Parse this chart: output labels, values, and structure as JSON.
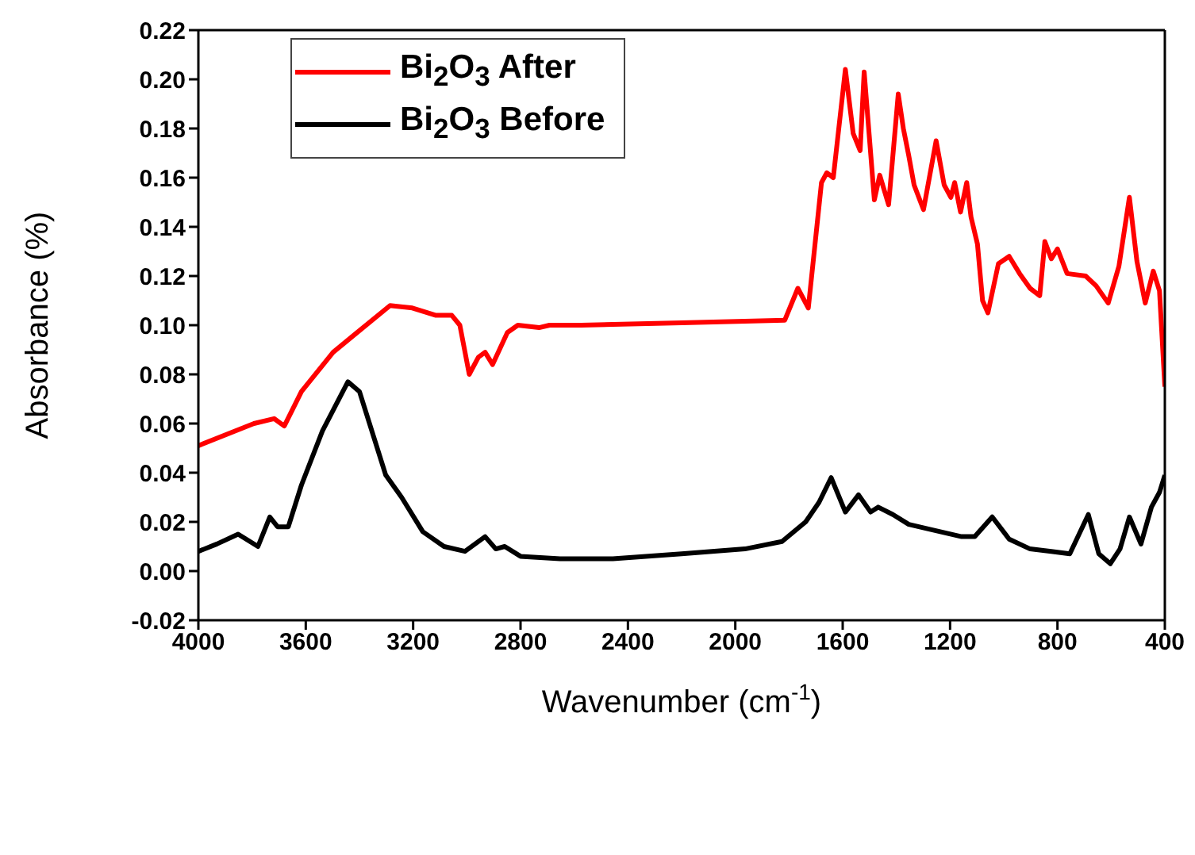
{
  "chart_data": {
    "type": "line",
    "xlabel": "Wavenumber (cm$^{-1}$)",
    "ylabel": "Absorbance (%)",
    "xlim": [
      4000,
      400
    ],
    "xticks": [
      4000,
      3600,
      3200,
      2800,
      2400,
      2000,
      1600,
      1200,
      800,
      400
    ],
    "ylim": [
      -0.02,
      0.22
    ],
    "yticks": [
      {
        "value": -0.02,
        "label": "-0.02"
      },
      {
        "value": 0,
        "label": "0.00"
      },
      {
        "value": 0.02,
        "label": "0.02"
      },
      {
        "value": 0.04,
        "label": "0.04"
      },
      {
        "value": 0.06,
        "label": "0.06"
      },
      {
        "value": 0.08,
        "label": "0.08"
      },
      {
        "value": 0.1,
        "label": "0.10"
      },
      {
        "value": 0.12,
        "label": "0.12"
      },
      {
        "value": 0.14,
        "label": "0.14"
      },
      {
        "value": 0.16,
        "label": "0.16"
      },
      {
        "value": 0.18,
        "label": "0.18"
      },
      {
        "value": 0.2,
        "label": "0.20"
      },
      {
        "value": 0.22,
        "label": "0.22"
      }
    ],
    "legend": "top left",
    "marker": "none",
    "line_style": "solid",
    "series": [
      {
        "name": "Bi$_{2}$O$_{3}$ After",
        "color": "#ff0000",
        "x": [
          4000,
          3793,
          3718,
          3680,
          3616,
          3498,
          3420,
          3286,
          3203,
          3115,
          3056,
          3026,
          2991,
          2957,
          2932,
          2904,
          2849,
          2810,
          2731,
          2692,
          2574,
          2200,
          1816,
          1767,
          1728,
          1679,
          1659,
          1635,
          1590,
          1561,
          1535,
          1520,
          1482,
          1462,
          1429,
          1393,
          1374,
          1354,
          1334,
          1299,
          1252,
          1222,
          1197,
          1183,
          1161,
          1138,
          1122,
          1098,
          1079,
          1059,
          1020,
          980,
          941,
          902,
          866,
          847,
          823,
          800,
          764,
          695,
          656,
          611,
          571,
          532,
          504,
          473,
          443,
          420,
          400
        ],
        "values": [
          0.051,
          0.06,
          0.062,
          0.059,
          0.073,
          0.089,
          0.096,
          0.108,
          0.107,
          0.104,
          0.104,
          0.1,
          0.08,
          0.087,
          0.089,
          0.084,
          0.097,
          0.1,
          0.099,
          0.1,
          0.1,
          0.101,
          0.102,
          0.115,
          0.107,
          0.158,
          0.162,
          0.16,
          0.204,
          0.178,
          0.171,
          0.203,
          0.151,
          0.161,
          0.149,
          0.194,
          0.18,
          0.169,
          0.157,
          0.147,
          0.175,
          0.157,
          0.152,
          0.158,
          0.146,
          0.158,
          0.144,
          0.133,
          0.11,
          0.105,
          0.125,
          0.128,
          0.121,
          0.115,
          0.112,
          0.134,
          0.127,
          0.131,
          0.121,
          0.12,
          0.116,
          0.109,
          0.124,
          0.152,
          0.126,
          0.109,
          0.122,
          0.114,
          0.075
        ]
      },
      {
        "name": "Bi$_{2}$O$_{3}$ Before",
        "color": "#000000",
        "x": [
          4000,
          3931,
          3852,
          3778,
          3734,
          3705,
          3665,
          3616,
          3538,
          3443,
          3400,
          3302,
          3243,
          3164,
          3085,
          3007,
          2932,
          2892,
          2859,
          2800,
          2653,
          2456,
          2200,
          1964,
          1826,
          1738,
          1688,
          1643,
          1590,
          1541,
          1496,
          1468,
          1413,
          1354,
          1275,
          1157,
          1108,
          1043,
          980,
          902,
          823,
          754,
          685,
          646,
          603,
          567,
          532,
          489,
          450,
          420,
          400
        ],
        "values": [
          0.008,
          0.011,
          0.015,
          0.01,
          0.022,
          0.018,
          0.018,
          0.035,
          0.057,
          0.077,
          0.073,
          0.039,
          0.03,
          0.016,
          0.01,
          0.008,
          0.014,
          0.009,
          0.01,
          0.006,
          0.005,
          0.005,
          0.007,
          0.009,
          0.012,
          0.02,
          0.028,
          0.038,
          0.024,
          0.031,
          0.024,
          0.026,
          0.023,
          0.019,
          0.017,
          0.014,
          0.014,
          0.022,
          0.013,
          0.009,
          0.008,
          0.007,
          0.023,
          0.007,
          0.003,
          0.009,
          0.022,
          0.011,
          0.026,
          0.032,
          0.039
        ]
      }
    ]
  }
}
